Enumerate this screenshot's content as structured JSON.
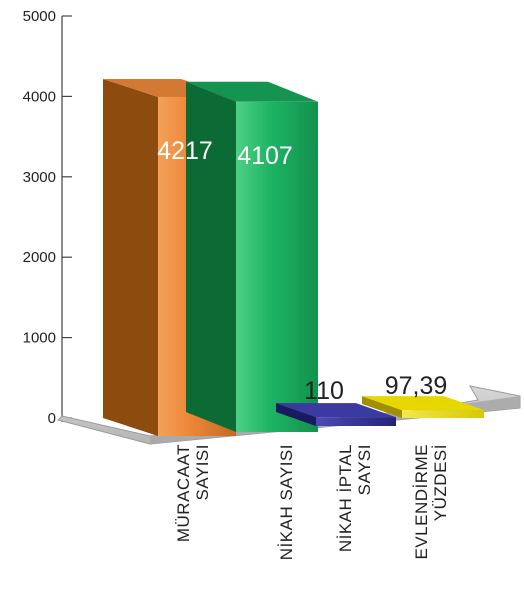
{
  "chart_data": {
    "type": "bar",
    "title": "",
    "xlabel": "",
    "ylabel": "",
    "categories": [
      [
        "MÜRACAAT",
        "SAYISI"
      ],
      [
        "NİKAH SAYISI"
      ],
      [
        "NİKAH İPTAL",
        "SAYSI"
      ],
      [
        "EVLENDİRME",
        "YÜZDESİ"
      ]
    ],
    "values": [
      4217,
      4107,
      110,
      97.39
    ],
    "data_labels": [
      "4217",
      "4107",
      "110",
      "97,39"
    ],
    "colors": [
      "#c0661c",
      "#1aa85a",
      "#2a2a8e",
      "#c9b400"
    ],
    "ylim": [
      0,
      5000
    ],
    "yticks": [
      "0",
      "1000",
      "2000",
      "3000",
      "4000",
      "5000"
    ],
    "grid": false,
    "legend": "none"
  }
}
